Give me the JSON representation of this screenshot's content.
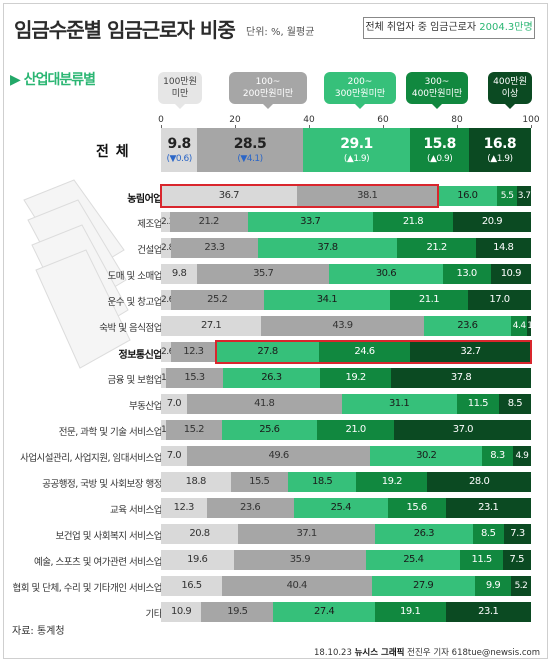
{
  "title": "임금수준별 임금근로자 비중",
  "unit": "단위: %, 월평균",
  "total_note": {
    "prefix": "전체 취업자 중 임금근로자 ",
    "value": "2004.3만명"
  },
  "section_title": "산업대분류별",
  "source": "자료: 통계청",
  "credit": {
    "date": "18.10.23 ",
    "brand": "뉴시스 그래픽",
    "author": " 전진우 기자 618tue@newsis.com"
  },
  "colors": {
    "band1": "#d9d9d9",
    "band2": "#a6a6a6",
    "band3": "#36c07a",
    "band4": "#11883f",
    "band5": "#0b4a22"
  },
  "chart_data": {
    "type": "stacked-bar-horizontal",
    "categories": [
      "100만원\n미만",
      "100~\n200만원미만",
      "200~\n300만원미만",
      "300~\n400만원미만",
      "400만원\n이상"
    ],
    "xlim": [
      0,
      100
    ],
    "xticks": [
      0,
      20,
      40,
      60,
      80,
      100
    ],
    "total": {
      "label": "전 체",
      "values": [
        9.8,
        28.5,
        29.1,
        15.8,
        16.8
      ],
      "changes": [
        "(▼0.6)",
        "(▼4.1)",
        "(▲1.9)",
        "(▲0.9)",
        "(▲1.9)"
      ]
    },
    "rows": [
      {
        "label": "농림어업",
        "bold": true,
        "highlight": true,
        "values": [
          36.7,
          38.1,
          16.0,
          5.5,
          3.7
        ]
      },
      {
        "label": "제조업",
        "values": [
          2.3,
          21.2,
          33.7,
          21.8,
          20.9
        ]
      },
      {
        "label": "건설업",
        "values": [
          2.8,
          23.3,
          37.8,
          21.2,
          14.8
        ]
      },
      {
        "label": "도매 및 소매업",
        "values": [
          9.8,
          35.7,
          30.6,
          13.0,
          10.9
        ]
      },
      {
        "label": "운수 및 창고업",
        "values": [
          2.6,
          25.2,
          34.1,
          21.1,
          17.0
        ]
      },
      {
        "label": "숙박 및 음식점업",
        "values": [
          27.1,
          43.9,
          23.6,
          4.4,
          1.0
        ]
      },
      {
        "label": "정보통신업",
        "bold": true,
        "highlight": true,
        "values": [
          2.6,
          12.3,
          27.8,
          24.6,
          32.7
        ]
      },
      {
        "label": "금융 및 보험업",
        "values": [
          1.4,
          15.3,
          26.3,
          19.2,
          37.8
        ]
      },
      {
        "label": "부동산업",
        "values": [
          7.0,
          41.8,
          31.1,
          11.5,
          8.5
        ]
      },
      {
        "label": "전문, 과학 및 기술 서비스업",
        "values": [
          1.3,
          15.2,
          25.6,
          21.0,
          37.0
        ]
      },
      {
        "label": "사업시설관리, 사업지원, 임대서비스업",
        "values": [
          7.0,
          49.6,
          30.2,
          8.3,
          4.9
        ]
      },
      {
        "label": "공공행정, 국방 및 사회보장 행정",
        "values": [
          18.8,
          15.5,
          18.5,
          19.2,
          28.0
        ]
      },
      {
        "label": "교육 서비스업",
        "values": [
          12.3,
          23.6,
          25.4,
          15.6,
          23.1
        ]
      },
      {
        "label": "보건업 및 사회복지 서비스업",
        "values": [
          20.8,
          37.1,
          26.3,
          8.5,
          7.3
        ]
      },
      {
        "label": "예술, 스포츠 및 여가관련 서비스업",
        "values": [
          19.6,
          35.9,
          25.4,
          11.5,
          7.5
        ]
      },
      {
        "label": "협회 및 단체, 수리 및 기타개인 서비스업",
        "values": [
          16.5,
          40.4,
          27.9,
          9.9,
          5.2
        ]
      },
      {
        "label": "기타",
        "values": [
          10.9,
          19.5,
          27.4,
          19.1,
          23.1
        ]
      }
    ]
  }
}
